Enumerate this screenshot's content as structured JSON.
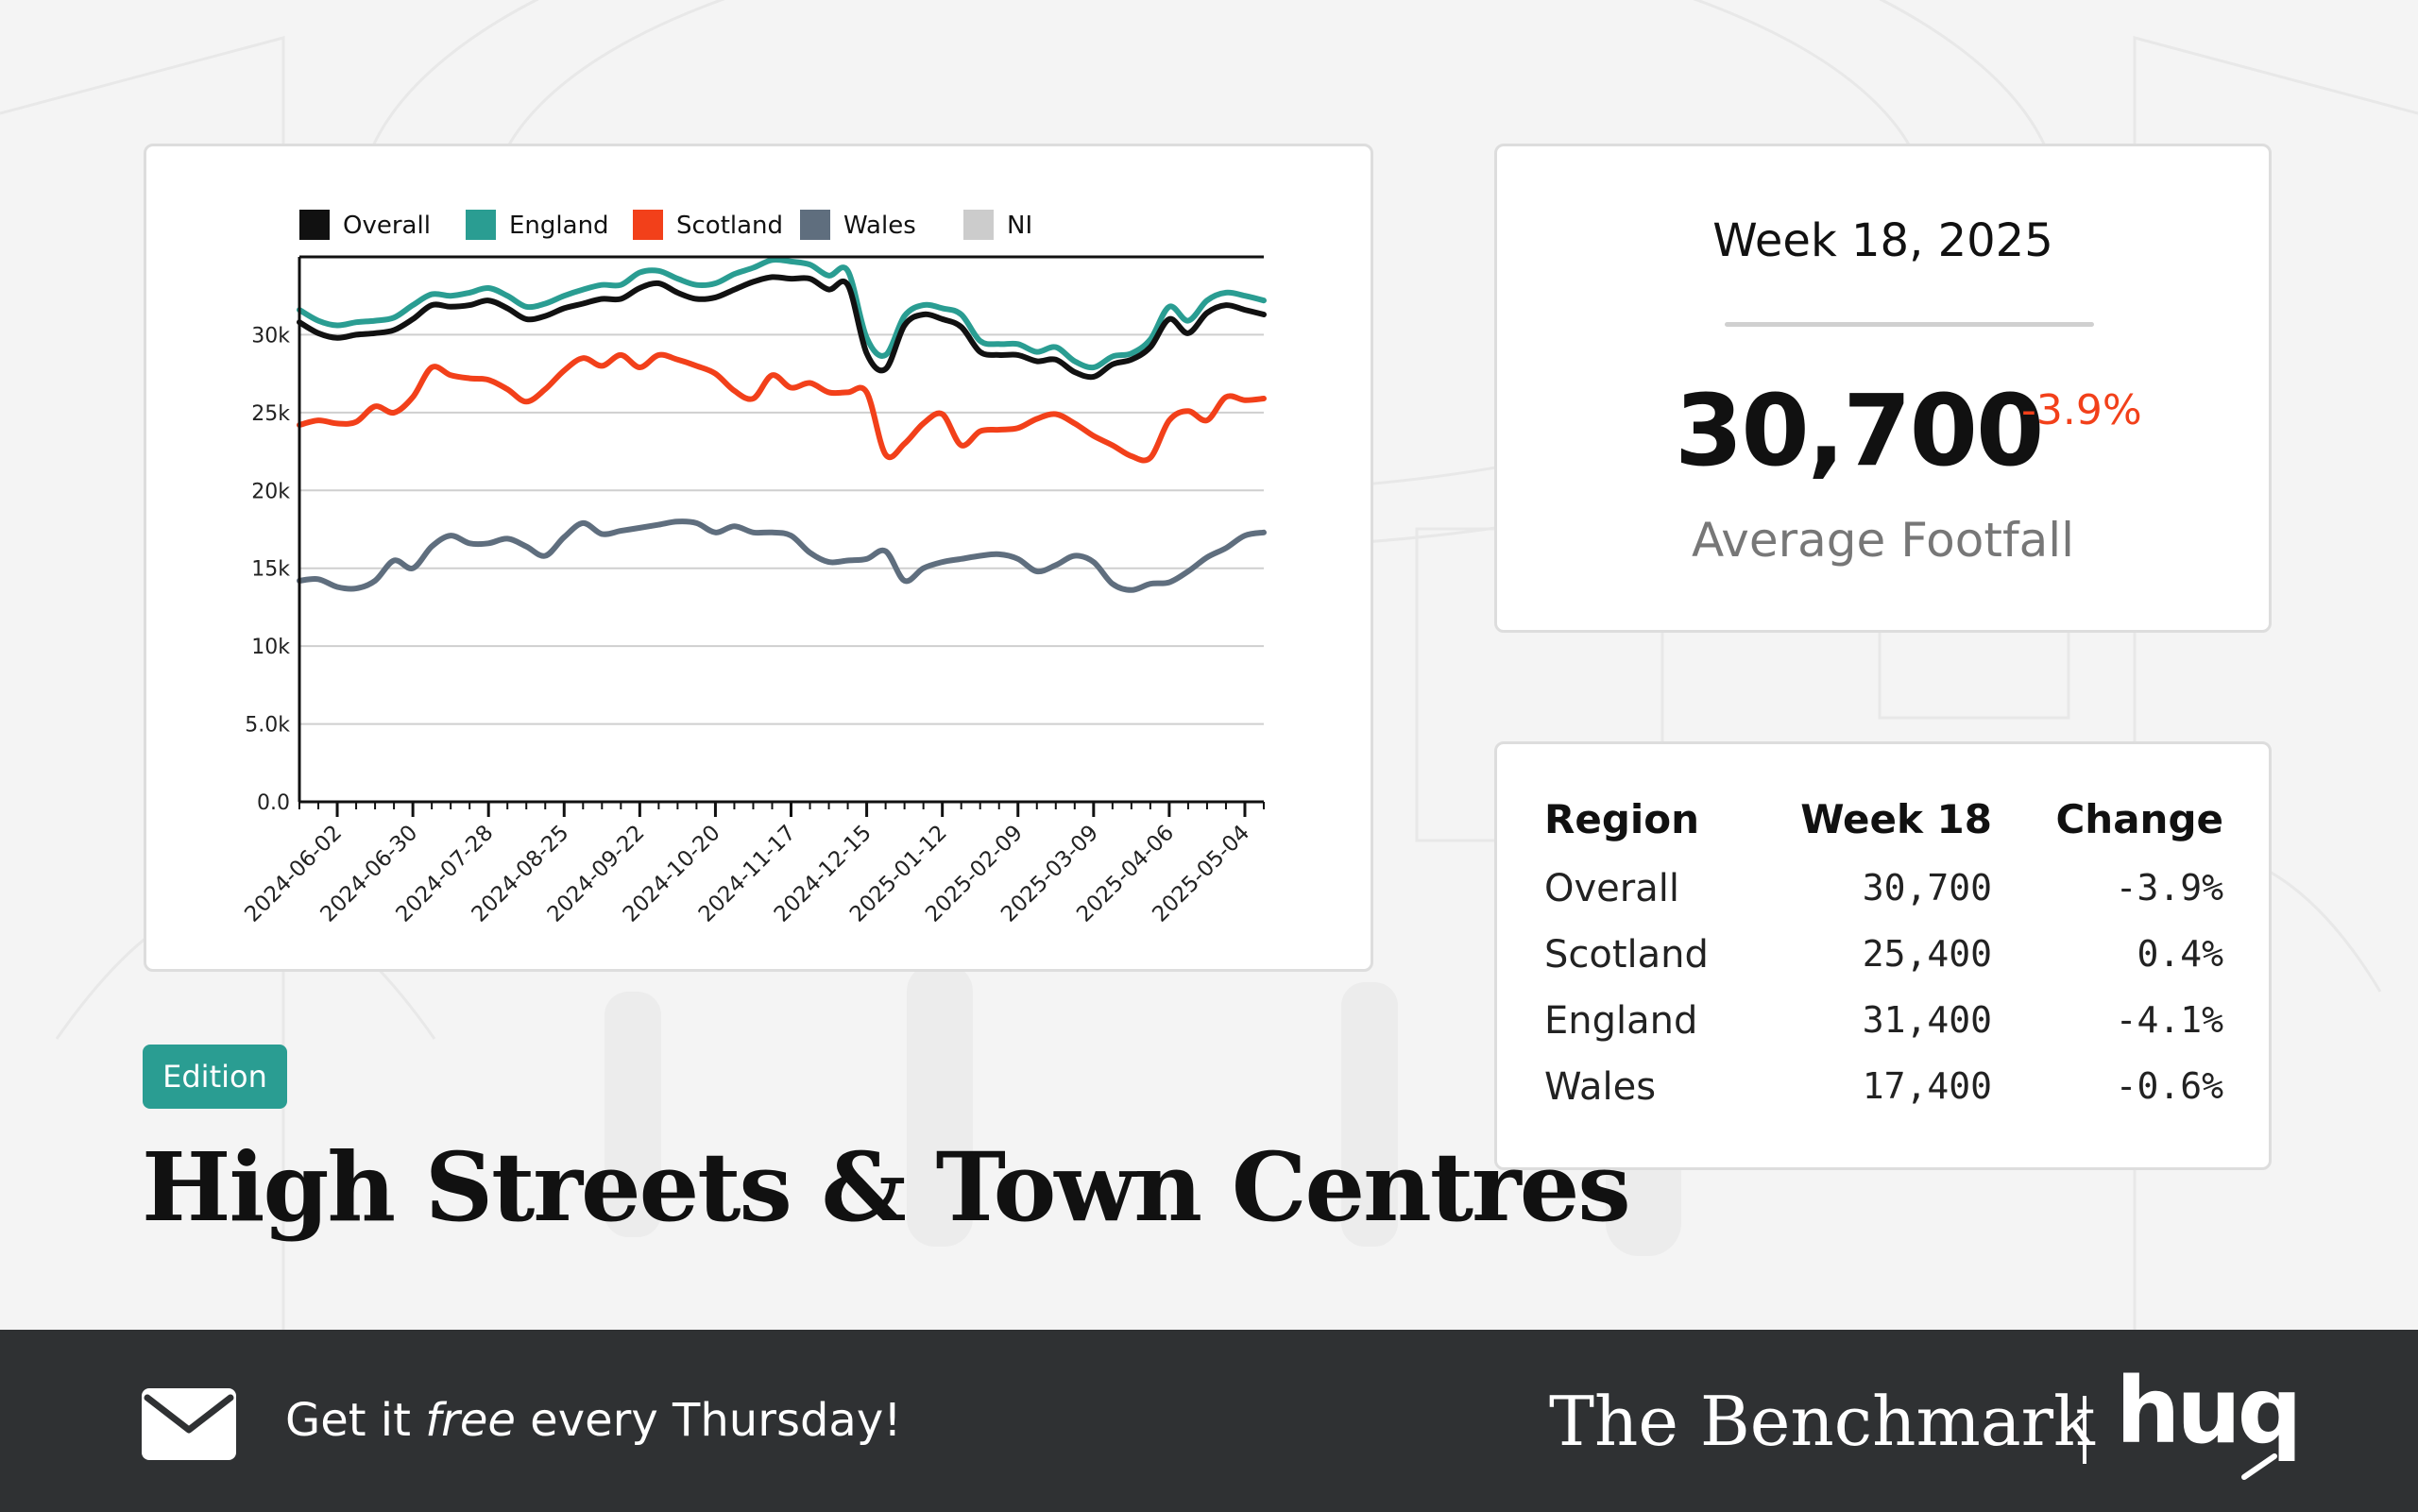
{
  "chart_data": {
    "type": "line",
    "title": "",
    "xlabel": "",
    "ylabel": "",
    "ylim": [
      0,
      35000
    ],
    "xlim": [
      "2024-05-19",
      "2025-05-11"
    ],
    "yticks": [
      {
        "value": 0,
        "label": "0.0"
      },
      {
        "value": 5000,
        "label": "5.0k"
      },
      {
        "value": 10000,
        "label": "10k"
      },
      {
        "value": 15000,
        "label": "15k"
      },
      {
        "value": 20000,
        "label": "20k"
      },
      {
        "value": 25000,
        "label": "25k"
      },
      {
        "value": 30000,
        "label": "30k"
      }
    ],
    "xticks": [
      "2024-06-02",
      "2024-06-30",
      "2024-07-28",
      "2024-08-25",
      "2024-09-22",
      "2024-10-20",
      "2024-11-17",
      "2024-12-15",
      "2025-01-12",
      "2025-02-09",
      "2025-03-09",
      "2025-04-06",
      "2025-05-04"
    ],
    "grid": true,
    "legend_position": "top",
    "x": [
      "2024-05-19",
      "2024-05-26",
      "2024-06-02",
      "2024-06-09",
      "2024-06-16",
      "2024-06-23",
      "2024-06-30",
      "2024-07-07",
      "2024-07-14",
      "2024-07-21",
      "2024-07-28",
      "2024-08-04",
      "2024-08-11",
      "2024-08-18",
      "2024-08-25",
      "2024-09-01",
      "2024-09-08",
      "2024-09-15",
      "2024-09-22",
      "2024-09-29",
      "2024-10-06",
      "2024-10-13",
      "2024-10-20",
      "2024-10-27",
      "2024-11-03",
      "2024-11-10",
      "2024-11-17",
      "2024-11-24",
      "2024-12-01",
      "2024-12-08",
      "2024-12-15",
      "2024-12-22",
      "2024-12-29",
      "2025-01-05",
      "2025-01-12",
      "2025-01-19",
      "2025-01-26",
      "2025-02-02",
      "2025-02-09",
      "2025-02-16",
      "2025-02-23",
      "2025-03-02",
      "2025-03-09",
      "2025-03-16",
      "2025-03-23",
      "2025-03-30",
      "2025-04-06",
      "2025-04-13",
      "2025-04-20",
      "2025-04-27",
      "2025-05-04",
      "2025-05-11"
    ],
    "series": [
      {
        "name": "Overall",
        "color": "#111111",
        "values": [
          30800,
          30100,
          29800,
          30000,
          30100,
          30300,
          31000,
          31900,
          31800,
          31900,
          32200,
          31700,
          31000,
          31200,
          31700,
          32000,
          32300,
          32300,
          33000,
          33300,
          32700,
          32300,
          32400,
          32900,
          33400,
          33700,
          33600,
          33600,
          32900,
          33200,
          28800,
          27800,
          30600,
          31300,
          31000,
          30500,
          28900,
          28700,
          28700,
          28300,
          28400,
          27600,
          27300,
          28100,
          28400,
          29200,
          31000,
          30100,
          31400,
          31900,
          31600,
          31300
        ]
      },
      {
        "name": "England",
        "color": "#2a9d92",
        "values": [
          31600,
          30900,
          30600,
          30800,
          30900,
          31100,
          31900,
          32600,
          32500,
          32700,
          33000,
          32500,
          31800,
          32000,
          32500,
          32900,
          33200,
          33200,
          34000,
          34100,
          33600,
          33200,
          33300,
          33900,
          34300,
          34800,
          34700,
          34500,
          33800,
          34100,
          29800,
          28700,
          31200,
          31900,
          31700,
          31300,
          29600,
          29400,
          29400,
          28900,
          29200,
          28300,
          27900,
          28600,
          28800,
          29700,
          31800,
          30900,
          32200,
          32700,
          32500,
          32200
        ]
      },
      {
        "name": "Scotland",
        "color": "#f2401a",
        "values": [
          24200,
          24500,
          24300,
          24400,
          25400,
          25000,
          26000,
          27900,
          27400,
          27200,
          27100,
          26500,
          25700,
          26500,
          27700,
          28500,
          28000,
          28700,
          27900,
          28700,
          28400,
          28000,
          27500,
          26400,
          25900,
          27400,
          26600,
          26900,
          26300,
          26300,
          26300,
          22300,
          23000,
          24300,
          24900,
          22900,
          23800,
          23900,
          24000,
          24600,
          24900,
          24300,
          23500,
          22900,
          22200,
          22100,
          24500,
          25100,
          24500,
          26000,
          25800,
          25900
        ]
      },
      {
        "name": "Wales",
        "color": "#5f6e7e",
        "values": [
          14200,
          14300,
          13800,
          13700,
          14200,
          15500,
          15000,
          16400,
          17100,
          16600,
          16600,
          16900,
          16400,
          15800,
          17000,
          17900,
          17200,
          17400,
          17600,
          17800,
          18000,
          17900,
          17300,
          17700,
          17300,
          17300,
          17100,
          16000,
          15400,
          15500,
          15600,
          16100,
          14200,
          15000,
          15400,
          15600,
          15800,
          15900,
          15600,
          14800,
          15200,
          15800,
          15400,
          14000,
          13600,
          14000,
          14100,
          14800,
          15700,
          16300,
          17100,
          17300
        ]
      }
    ],
    "legend": [
      {
        "name": "Overall",
        "color": "#111111"
      },
      {
        "name": "England",
        "color": "#2a9d92"
      },
      {
        "name": "Scotland",
        "color": "#f2401a"
      },
      {
        "name": "Wales",
        "color": "#5f6e7e"
      },
      {
        "name": "NI",
        "color": "#cccccc"
      }
    ]
  },
  "kpi": {
    "week": "Week 18, 2025",
    "value": "30,700",
    "change": "-3.9%",
    "label": "Average Footfall",
    "change_color": "#f2401a"
  },
  "table": {
    "headers": {
      "region": "Region",
      "week": "Week 18",
      "change": "Change"
    },
    "rows": [
      {
        "region": "Overall",
        "week": "30,700",
        "change": "-3.9%"
      },
      {
        "region": "Scotland",
        "week": "25,400",
        "change": "0.4%"
      },
      {
        "region": "England",
        "week": "31,400",
        "change": "-4.1%"
      },
      {
        "region": "Wales",
        "week": "17,400",
        "change": "-0.6%"
      }
    ]
  },
  "edition": {
    "label": "Edition",
    "color": "#2a9d92"
  },
  "page_title": "High Streets & Town Centres",
  "footer": {
    "cta_before": "Get it ",
    "cta_em": "free",
    "cta_after": " every Thursday!",
    "brand": "The Benchmark",
    "logo": "huq",
    "icon": "mail-icon"
  }
}
